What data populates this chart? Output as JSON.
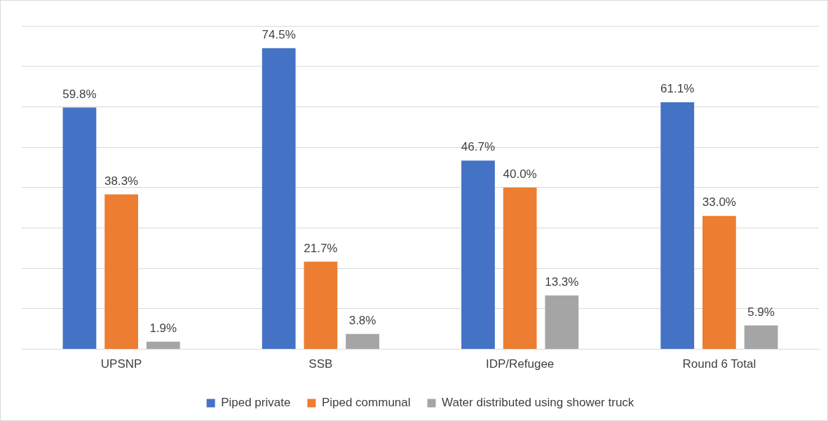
{
  "chart_data": {
    "type": "bar",
    "categories": [
      "UPSNP",
      "SSB",
      "IDP/Refugee",
      "Round 6 Total"
    ],
    "series": [
      {
        "name": "Piped private",
        "color": "#4472c4",
        "values": [
          59.8,
          74.5,
          46.7,
          61.1
        ],
        "value_labels": [
          "59.8%",
          "74.5%",
          "46.7%",
          "61.1%"
        ]
      },
      {
        "name": "Piped communal",
        "color": "#ed7d31",
        "values": [
          38.3,
          21.7,
          40.0,
          33.0
        ],
        "value_labels": [
          "38.3%",
          "21.7%",
          "40.0%",
          "33.0%"
        ]
      },
      {
        "name": "Water distributed using shower truck",
        "color": "#a5a5a5",
        "values": [
          1.9,
          3.8,
          13.3,
          5.9
        ],
        "value_labels": [
          "1.9%",
          "3.8%",
          "13.3%",
          "5.9%"
        ]
      }
    ],
    "ylim": [
      0,
      80
    ],
    "yticks": [
      0,
      10,
      20,
      30,
      40,
      50,
      60,
      70,
      80
    ],
    "tick_labels": "x",
    "grid": "y",
    "legend": "bottom"
  }
}
